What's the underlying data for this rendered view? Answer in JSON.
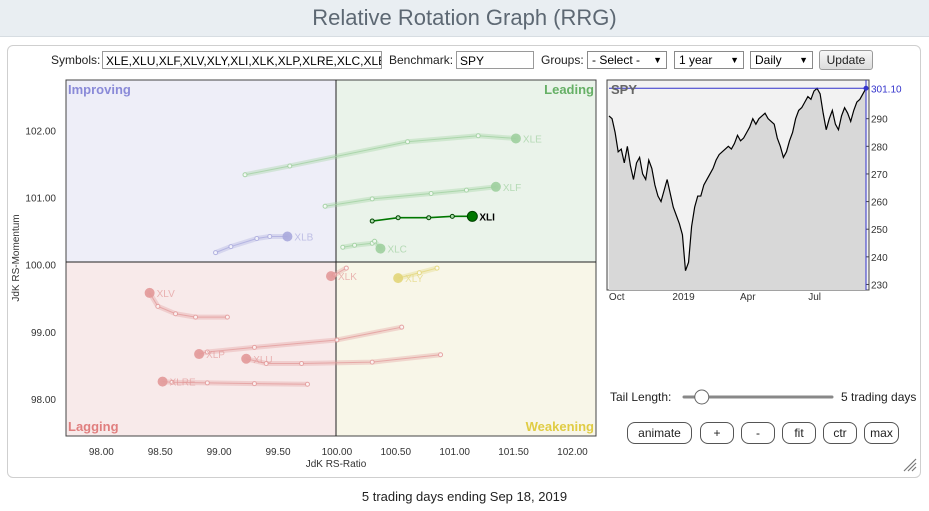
{
  "page_title": "Relative Rotation Graph (RRG)",
  "controls": {
    "symbols_label": "Symbols:",
    "symbols_value": "XLE,XLU,XLF,XLV,XLY,XLI,XLK,XLP,XLRE,XLC,XLB",
    "benchmark_label": "Benchmark:",
    "benchmark_value": "SPY",
    "groups_label": "Groups:",
    "groups_value": "- Select -",
    "period_value": "1 year",
    "frequency_value": "Daily",
    "update_label": "Update"
  },
  "quadrants": {
    "improving": "Improving",
    "leading": "Leading",
    "lagging": "Lagging",
    "weakening": "Weakening"
  },
  "colors": {
    "improving_bg": "#eeeef8",
    "leading_bg": "#eaf3ea",
    "lagging_bg": "#f8eaea",
    "weakening_bg": "#f8f6e8",
    "improving_text": "#8a8ad8",
    "leading_text": "#66b066",
    "lagging_text": "#e07f7f",
    "weakening_text": "#e0cc44",
    "price_line": "#000000",
    "price_fill": "#d8d8d8",
    "price_marker": "#3333cc"
  },
  "chart_data": [
    {
      "type": "scatter",
      "title": "",
      "xlabel": "JdK RS-Ratio",
      "ylabel": "JdK RS-Momentum",
      "xlim": [
        97.7,
        102.2
      ],
      "ylim": [
        97.45,
        102.75
      ],
      "xticks": [
        "98.00",
        "98.50",
        "99.00",
        "99.50",
        "100.00",
        "100.50",
        "101.00",
        "101.50",
        "102.00"
      ],
      "yticks": [
        "98.00",
        "99.00",
        "100.00",
        "101.00",
        "102.00"
      ],
      "center": [
        100.0,
        100.0
      ],
      "series": [
        {
          "name": "XLE",
          "color": "#9fd09f",
          "highlight": false,
          "points": [
            [
              99.22,
              101.34
            ],
            [
              99.6,
              101.47
            ],
            [
              100.6,
              101.83
            ],
            [
              101.2,
              101.92
            ],
            [
              101.52,
              101.88
            ]
          ]
        },
        {
          "name": "XLF",
          "color": "#9fd09f",
          "highlight": false,
          "points": [
            [
              99.9,
              100.87
            ],
            [
              100.3,
              100.98
            ],
            [
              100.8,
              101.06
            ],
            [
              101.1,
              101.11
            ],
            [
              101.35,
              101.16
            ]
          ]
        },
        {
          "name": "XLI",
          "color": "#007700",
          "highlight": true,
          "points": [
            [
              100.3,
              100.65
            ],
            [
              100.52,
              100.7
            ],
            [
              100.78,
              100.7
            ],
            [
              100.98,
              100.72
            ],
            [
              101.15,
              100.72
            ]
          ]
        },
        {
          "name": "XLC",
          "color": "#9fd09f",
          "highlight": false,
          "points": [
            [
              100.05,
              100.26
            ],
            [
              100.15,
              100.29
            ],
            [
              100.3,
              100.32
            ],
            [
              100.32,
              100.35
            ],
            [
              100.37,
              100.24
            ]
          ]
        },
        {
          "name": "XLB",
          "color": "#aaaadd",
          "highlight": false,
          "points": [
            [
              98.97,
              100.18
            ],
            [
              99.1,
              100.27
            ],
            [
              99.32,
              100.39
            ],
            [
              99.43,
              100.42
            ],
            [
              99.58,
              100.42
            ]
          ]
        },
        {
          "name": "XLK",
          "color": "#e39a9a",
          "highlight": false,
          "points": [
            [
              100.08,
              99.95
            ],
            [
              99.98,
              99.85
            ],
            [
              99.95,
              99.83
            ]
          ]
        },
        {
          "name": "XLY",
          "color": "#e3d67a",
          "highlight": false,
          "points": [
            [
              100.85,
              99.95
            ],
            [
              100.7,
              99.88
            ],
            [
              100.52,
              99.8
            ]
          ]
        },
        {
          "name": "XLV",
          "color": "#e39a9a",
          "highlight": false,
          "points": [
            [
              99.07,
              99.22
            ],
            [
              98.8,
              99.22
            ],
            [
              98.63,
              99.27
            ],
            [
              98.48,
              99.38
            ],
            [
              98.41,
              99.58
            ]
          ]
        },
        {
          "name": "XLP",
          "color": "#e39a9a",
          "highlight": false,
          "points": [
            [
              100.55,
              99.07
            ],
            [
              100.0,
              98.88
            ],
            [
              99.3,
              98.77
            ],
            [
              98.9,
              98.7
            ],
            [
              98.83,
              98.67
            ]
          ]
        },
        {
          "name": "XLU",
          "color": "#e39a9a",
          "highlight": false,
          "points": [
            [
              100.88,
              98.66
            ],
            [
              100.3,
              98.55
            ],
            [
              99.7,
              98.53
            ],
            [
              99.4,
              98.53
            ],
            [
              99.23,
              98.6
            ]
          ]
        },
        {
          "name": "XLRE",
          "color": "#e39a9a",
          "highlight": false,
          "points": [
            [
              99.75,
              98.22
            ],
            [
              99.3,
              98.23
            ],
            [
              98.9,
              98.24
            ],
            [
              98.6,
              98.25
            ],
            [
              98.52,
              98.26
            ]
          ]
        }
      ]
    },
    {
      "type": "area",
      "title": "SPY",
      "last_value": "301.10",
      "xticks": [
        "Oct",
        "2019",
        "Apr",
        "Jul"
      ],
      "yticks": [
        "230",
        "240",
        "250",
        "260",
        "270",
        "280",
        "290"
      ],
      "ylim": [
        228,
        304
      ],
      "x": [
        0,
        3,
        6,
        9,
        12,
        15,
        18,
        21,
        24,
        27,
        30,
        33,
        36,
        39,
        42,
        45,
        48,
        51,
        54,
        57,
        60,
        63,
        66,
        69,
        72,
        75,
        78,
        81,
        84,
        87,
        90,
        93,
        96,
        99,
        102,
        105,
        108,
        111,
        114,
        117,
        120,
        123,
        126,
        129,
        132,
        135,
        138,
        141,
        144,
        147,
        150,
        153,
        156,
        159,
        162,
        165,
        168,
        171,
        174,
        177,
        180,
        183,
        186,
        189,
        192,
        195,
        198,
        201,
        204,
        207,
        210,
        213,
        216,
        219,
        222,
        225,
        228,
        231,
        234,
        237,
        240,
        243,
        246,
        249,
        252
      ],
      "values": [
        291,
        290,
        285,
        278,
        279,
        274,
        280,
        273,
        268,
        274,
        276,
        270,
        268,
        275,
        272,
        266,
        262,
        260,
        264,
        268,
        263,
        258,
        255,
        252,
        248,
        235,
        238,
        251,
        258,
        262,
        262,
        266,
        268,
        270,
        272,
        275,
        277,
        278,
        279,
        280,
        279,
        281,
        284,
        282,
        283,
        285,
        287,
        290,
        288,
        290,
        291,
        292,
        290,
        289,
        288,
        283,
        280,
        276,
        278,
        282,
        285,
        290,
        293,
        294,
        296,
        298,
        297,
        300,
        301,
        299,
        292,
        286,
        290,
        293,
        288,
        286,
        291,
        294,
        292,
        289,
        293,
        296,
        297,
        299,
        301
      ]
    }
  ],
  "axis_labels": {
    "x": "JdK RS-Ratio",
    "y": "JdK RS-Momentum"
  },
  "tail": {
    "label": "Tail Length:",
    "value_text": "5 trading days",
    "slider_fraction": 0.12
  },
  "buttons": {
    "animate": "animate",
    "plus": "+",
    "minus": "-",
    "fit": "fit",
    "ctr": "ctr",
    "max": "max"
  },
  "footer": "5 trading days ending Sep 18, 2019"
}
